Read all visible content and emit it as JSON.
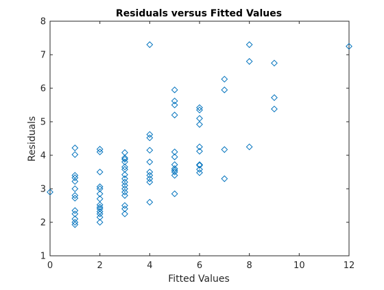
{
  "chart_data": {
    "type": "scatter",
    "title": "Residuals versus Fitted Values",
    "xlabel": "Fitted Values",
    "ylabel": "Residuals",
    "xlim": [
      0,
      12
    ],
    "ylim": [
      1,
      8
    ],
    "xticks": [
      "0",
      "2",
      "4",
      "6",
      "8",
      "10",
      "12"
    ],
    "yticks": [
      "1",
      "2",
      "3",
      "4",
      "5",
      "6",
      "7",
      "8"
    ],
    "marker": "diamond",
    "color": "#0072BD",
    "grid": false,
    "points": [
      [
        0,
        2.9
      ],
      [
        1,
        1.93
      ],
      [
        1,
        2.0
      ],
      [
        1,
        2.1
      ],
      [
        1,
        2.25
      ],
      [
        1,
        2.35
      ],
      [
        1,
        2.72
      ],
      [
        1,
        2.8
      ],
      [
        1,
        3.0
      ],
      [
        1,
        3.22
      ],
      [
        1,
        3.33
      ],
      [
        1,
        3.4
      ],
      [
        1,
        4.02
      ],
      [
        1,
        4.22
      ],
      [
        2,
        2.0
      ],
      [
        2,
        2.15
      ],
      [
        2,
        2.25
      ],
      [
        2,
        2.32
      ],
      [
        2,
        2.4
      ],
      [
        2,
        2.45
      ],
      [
        2,
        2.52
      ],
      [
        2,
        2.7
      ],
      [
        2,
        2.85
      ],
      [
        2,
        3.0
      ],
      [
        2,
        3.06
      ],
      [
        2,
        3.5
      ],
      [
        2,
        4.1
      ],
      [
        2,
        4.18
      ],
      [
        3,
        2.25
      ],
      [
        3,
        2.4
      ],
      [
        3,
        2.5
      ],
      [
        3,
        2.8
      ],
      [
        3,
        2.9
      ],
      [
        3,
        3.0
      ],
      [
        3,
        3.1
      ],
      [
        3,
        3.2
      ],
      [
        3,
        3.3
      ],
      [
        3,
        3.42
      ],
      [
        3,
        3.58
      ],
      [
        3,
        3.65
      ],
      [
        3,
        3.8
      ],
      [
        3,
        3.88
      ],
      [
        3,
        3.92
      ],
      [
        3,
        4.08
      ],
      [
        4,
        2.6
      ],
      [
        4,
        3.2
      ],
      [
        4,
        3.3
      ],
      [
        4,
        3.4
      ],
      [
        4,
        3.5
      ],
      [
        4,
        3.8
      ],
      [
        4,
        4.15
      ],
      [
        4,
        4.52
      ],
      [
        4,
        4.62
      ],
      [
        4,
        7.3
      ],
      [
        5,
        2.85
      ],
      [
        5,
        3.4
      ],
      [
        5,
        3.5
      ],
      [
        5,
        3.55
      ],
      [
        5,
        3.6
      ],
      [
        5,
        3.72
      ],
      [
        5,
        3.95
      ],
      [
        5,
        4.1
      ],
      [
        5,
        5.2
      ],
      [
        5,
        5.5
      ],
      [
        5,
        5.62
      ],
      [
        5,
        5.95
      ],
      [
        6,
        3.48
      ],
      [
        6,
        3.58
      ],
      [
        6,
        3.7
      ],
      [
        6,
        3.72
      ],
      [
        6,
        4.12
      ],
      [
        6,
        4.25
      ],
      [
        6,
        4.92
      ],
      [
        6,
        5.1
      ],
      [
        6,
        5.35
      ],
      [
        6,
        5.42
      ],
      [
        7,
        3.3
      ],
      [
        7,
        4.17
      ],
      [
        7,
        5.95
      ],
      [
        7,
        6.27
      ],
      [
        8,
        4.25
      ],
      [
        8,
        6.8
      ],
      [
        8,
        7.3
      ],
      [
        9,
        5.38
      ],
      [
        9,
        5.72
      ],
      [
        9,
        6.75
      ],
      [
        12,
        7.25
      ]
    ]
  }
}
